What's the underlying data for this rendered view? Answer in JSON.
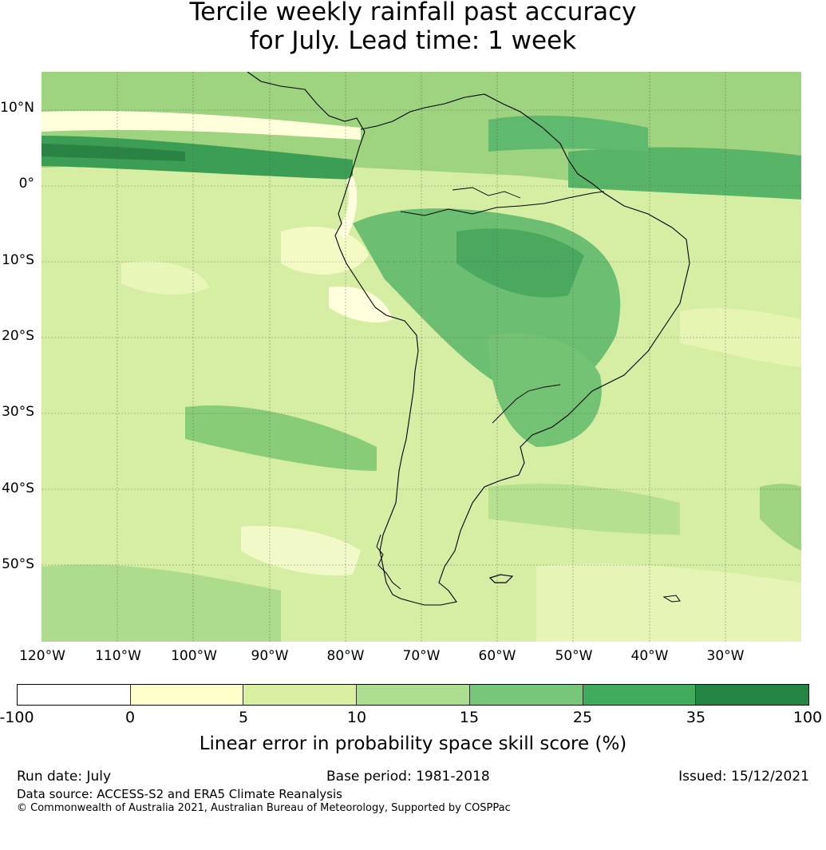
{
  "title_line1": "Tercile weekly rainfall past accuracy",
  "title_line2": "for July. Lead time: 1 week",
  "map": {
    "lat_labels": [
      "10°N",
      "0°",
      "10°S",
      "20°S",
      "30°S",
      "40°S",
      "50°S"
    ],
    "lon_labels": [
      "120°W",
      "110°W",
      "100°W",
      "90°W",
      "80°W",
      "70°W",
      "60°W",
      "50°W",
      "40°W",
      "30°W"
    ],
    "extent": {
      "lon_min": -120,
      "lon_max": -20,
      "lat_min": -60,
      "lat_max": 15
    }
  },
  "colorbar": {
    "ticks": [
      "-100",
      "0",
      "5",
      "10",
      "15",
      "25",
      "35",
      "100"
    ],
    "colors": [
      "#ffffff",
      "#ffffcc",
      "#d9f0a3",
      "#addd8e",
      "#78c679",
      "#41ab5d",
      "#238443"
    ],
    "label": "Linear error in probability space skill score (%)"
  },
  "footer": {
    "run_date": "Run date: July",
    "base_period": "Base period: 1981-2018",
    "issued": "Issued: 15/12/2021",
    "data_source": "Data source: ACCESS-S2 and ERA5 Climate Reanalysis",
    "copyright": "© Commonwealth of Australia 2021, Australian Bureau of Meteorology, Supported by COSPPac"
  }
}
